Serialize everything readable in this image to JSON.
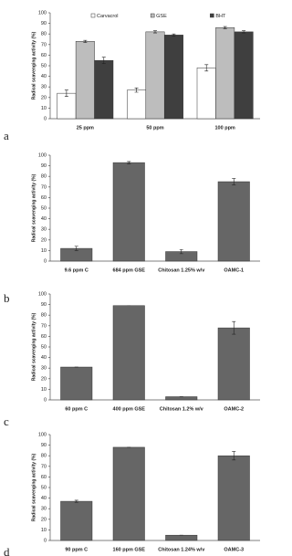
{
  "chart_data": [
    {
      "type": "bar",
      "panel": "a",
      "y_label": "Radical scavenging activity (%)",
      "categories": [
        "25 ppm",
        "50 ppm",
        "100 ppm"
      ],
      "series": [
        {
          "name": "Carvacrol",
          "color": "#ffffff",
          "values": [
            24,
            27,
            48
          ],
          "errors": [
            3,
            2,
            3
          ]
        },
        {
          "name": "GSE",
          "color": "#bdbdbd",
          "values": [
            73,
            82,
            86
          ],
          "errors": [
            1,
            1,
            1
          ]
        },
        {
          "name": "BHT",
          "color": "#3f3f3f",
          "values": [
            55,
            79,
            82
          ],
          "errors": [
            3,
            1,
            1
          ]
        }
      ],
      "ylim": [
        0,
        100
      ],
      "yticks": [
        0,
        10,
        20,
        30,
        40,
        50,
        60,
        70,
        80,
        90,
        100
      ],
      "legend": "top"
    },
    {
      "type": "bar",
      "panel": "b",
      "y_label": "Radical scavenging activity (%)",
      "categories": [
        "9.6 ppm C",
        "684 ppm GSE",
        "Chitosan 1.25% w/v",
        "OAMC-1"
      ],
      "series": [
        {
          "color": "#666666",
          "values": [
            12,
            93,
            9,
            75
          ],
          "errors": [
            2,
            1,
            2,
            3
          ]
        }
      ],
      "ylim": [
        0,
        100
      ],
      "yticks": [
        0,
        10,
        20,
        30,
        40,
        50,
        60,
        70,
        80,
        90,
        100
      ]
    },
    {
      "type": "bar",
      "panel": "c",
      "y_label": "Radical scavenging activity (%)",
      "categories": [
        "60 ppm C",
        "400 ppm GSE",
        "Chitosan 1.2% w/v",
        "OAMC-2"
      ],
      "series": [
        {
          "color": "#666666",
          "values": [
            31,
            89,
            3,
            68
          ],
          "errors": [
            0,
            0,
            0,
            6
          ]
        }
      ],
      "ylim": [
        0,
        100
      ],
      "yticks": [
        0,
        10,
        20,
        30,
        40,
        50,
        60,
        70,
        80,
        90,
        100
      ]
    },
    {
      "type": "bar",
      "panel": "d",
      "y_label": "Radical scavenging activity (%)",
      "categories": [
        "90 ppm C",
        "160 ppm GSE",
        "Chitosan 1.24% w/v",
        "OAMC-3"
      ],
      "series": [
        {
          "color": "#666666",
          "values": [
            37,
            88,
            5,
            80
          ],
          "errors": [
            1,
            0,
            0,
            4
          ]
        }
      ],
      "ylim": [
        0,
        100
      ],
      "yticks": [
        0,
        10,
        20,
        30,
        40,
        50,
        60,
        70,
        80,
        90,
        100
      ]
    }
  ]
}
